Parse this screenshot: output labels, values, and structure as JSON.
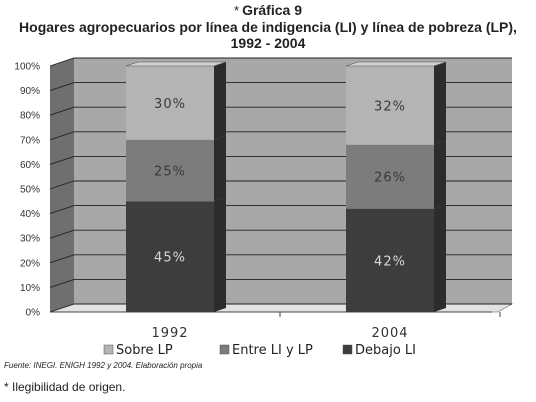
{
  "header": {
    "marker": "*",
    "label": "Gráfica 9",
    "title": "Hogares agropecuarios por línea de indigencia (LI) y línea de pobreza (LP),",
    "subtitle": "1992 - 2004"
  },
  "chart_data": {
    "type": "bar",
    "stacked": true,
    "categories": [
      "1992",
      "2004"
    ],
    "series": [
      {
        "name": "Debajo LI",
        "values": [
          45,
          42
        ],
        "labels": [
          "45%",
          "42%"
        ],
        "color": "#3d3d3d"
      },
      {
        "name": "Entre LI y LP",
        "values": [
          25,
          26
        ],
        "labels": [
          "25%",
          "26%"
        ],
        "color": "#7c7c7c"
      },
      {
        "name": "Sobre LP",
        "values": [
          30,
          32
        ],
        "labels": [
          "30%",
          "32%"
        ],
        "color": "#b4b4b4"
      }
    ],
    "y_ticks": [
      "0%",
      "10%",
      "20%",
      "30%",
      "40%",
      "50%",
      "60%",
      "70%",
      "80%",
      "90%",
      "100%"
    ],
    "ylim": [
      0,
      100
    ],
    "grid": true,
    "legend_position": "bottom",
    "legend_order": [
      "Sobre LP",
      "Entre LI y LP",
      "Debajo LI"
    ],
    "panel_color": "#a8a8a8",
    "wall_color": "#6f6f6f"
  },
  "footer": {
    "source": "Fuente: INEGI. ENIGH 1992 y 2004. Elaboración propia",
    "note": "* Ilegibilidad de origen."
  }
}
